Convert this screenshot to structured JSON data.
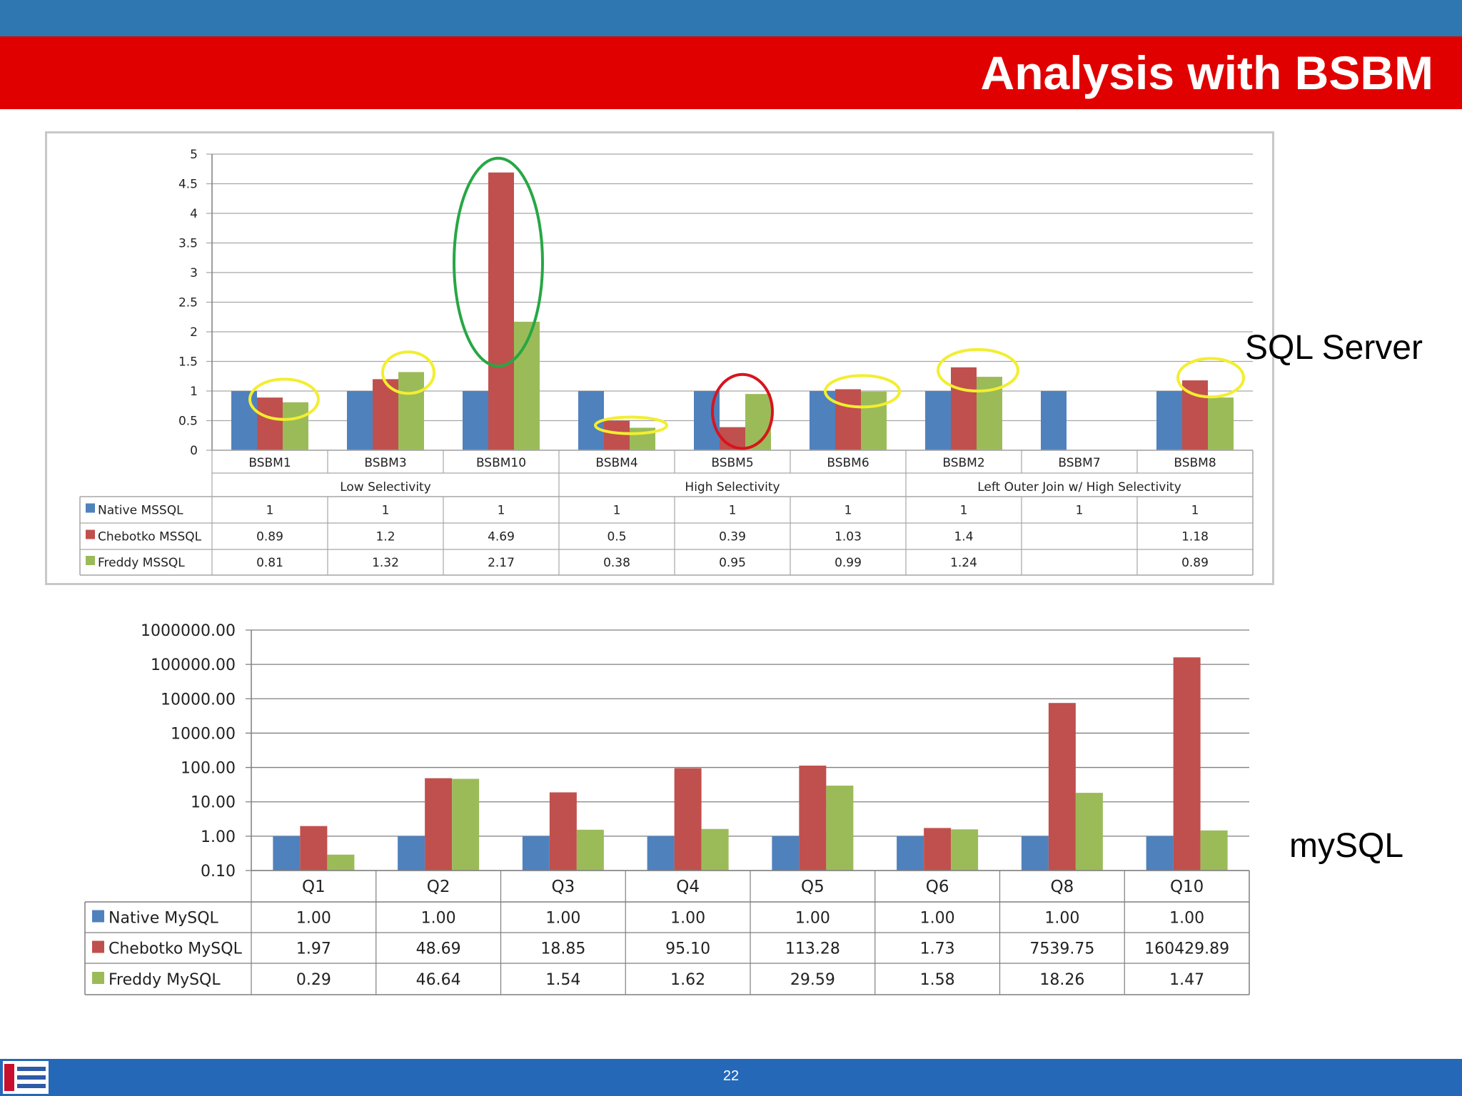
{
  "slide": {
    "title": "Analysis with BSBM",
    "page_number": "22",
    "label_sqlserver": "SQL Server",
    "label_mysql": "mySQL"
  },
  "colors": {
    "native": "#4f81bd",
    "chebotko": "#c0504d",
    "freddy": "#9bbb59",
    "top_bar": "#2f77b0",
    "title_bar": "#e10000",
    "bottom_bar": "#2568b8"
  },
  "chart_data": [
    {
      "type": "bar",
      "categories": [
        "BSBM1",
        "BSBM3",
        "BSBM10",
        "BSBM4",
        "BSBM5",
        "BSBM6",
        "BSBM2",
        "BSBM7",
        "BSBM8"
      ],
      "groups": [
        {
          "label": "Low Selectivity",
          "span": 3
        },
        {
          "label": "High Selectivity",
          "span": 3
        },
        {
          "label": "Left Outer Join w/ High Selectivity",
          "span": 3
        }
      ],
      "series": [
        {
          "name": "Native MSSQL",
          "values": [
            1,
            1,
            1,
            1,
            1,
            1,
            1,
            1,
            1
          ],
          "labels": [
            "1",
            "1",
            "1",
            "1",
            "1",
            "1",
            "1",
            "1",
            "1"
          ]
        },
        {
          "name": "Chebotko MSSQL",
          "values": [
            0.89,
            1.2,
            4.69,
            0.5,
            0.39,
            1.03,
            1.4,
            null,
            1.18
          ],
          "labels": [
            "0.89",
            "1.2",
            "4.69",
            "0.5",
            "0.39",
            "1.03",
            "1.4",
            "",
            "1.18"
          ]
        },
        {
          "name": "Freddy MSSQL",
          "values": [
            0.81,
            1.32,
            2.17,
            0.38,
            0.95,
            0.99,
            1.24,
            null,
            0.89
          ],
          "labels": [
            "0.81",
            "1.32",
            "2.17",
            "0.38",
            "0.95",
            "0.99",
            "1.24",
            "",
            "0.89"
          ]
        }
      ],
      "yticks": [
        "0",
        "0.5",
        "1",
        "1.5",
        "2",
        "2.5",
        "3",
        "3.5",
        "4",
        "4.5",
        "5"
      ],
      "ylim": [
        0,
        5
      ],
      "grid": true,
      "legend": "data-table",
      "annotations": [
        {
          "shape": "ellipse",
          "color": "green",
          "category": "BSBM10"
        },
        {
          "shape": "ellipse",
          "color": "red",
          "category": "BSBM5"
        },
        {
          "shape": "ellipse",
          "color": "yellow",
          "category": "BSBM1"
        },
        {
          "shape": "ellipse",
          "color": "yellow",
          "category": "BSBM3"
        },
        {
          "shape": "ellipse",
          "color": "yellow",
          "category": "BSBM4"
        },
        {
          "shape": "ellipse",
          "color": "yellow",
          "category": "BSBM6"
        },
        {
          "shape": "ellipse",
          "color": "yellow",
          "category": "BSBM2"
        },
        {
          "shape": "ellipse",
          "color": "yellow",
          "category": "BSBM8"
        }
      ]
    },
    {
      "type": "bar",
      "categories": [
        "Q1",
        "Q2",
        "Q3",
        "Q4",
        "Q5",
        "Q6",
        "Q8",
        "Q10"
      ],
      "yscale": "log",
      "series": [
        {
          "name": "Native MySQL",
          "values": [
            1,
            1,
            1,
            1,
            1,
            1,
            1,
            1
          ],
          "labels": [
            "1.00",
            "1.00",
            "1.00",
            "1.00",
            "1.00",
            "1.00",
            "1.00",
            "1.00"
          ]
        },
        {
          "name": "Chebotko MySQL",
          "values": [
            1.97,
            48.69,
            18.85,
            95.1,
            113.28,
            1.73,
            7539.75,
            160429.89
          ],
          "labels": [
            "1.97",
            "48.69",
            "18.85",
            "95.10",
            "113.28",
            "1.73",
            "7539.75",
            "160429.89"
          ]
        },
        {
          "name": "Freddy MySQL",
          "values": [
            0.29,
            46.64,
            1.54,
            1.62,
            29.59,
            1.58,
            18.26,
            1.47
          ],
          "labels": [
            "0.29",
            "46.64",
            "1.54",
            "1.62",
            "29.59",
            "1.58",
            "18.26",
            "1.47"
          ]
        }
      ],
      "yticks": [
        "0.10",
        "1.00",
        "10.00",
        "100.00",
        "1000.00",
        "10000.00",
        "100000.00",
        "1000000.00"
      ],
      "ylim": [
        0.1,
        1000000
      ],
      "grid": true,
      "legend": "data-table"
    }
  ]
}
